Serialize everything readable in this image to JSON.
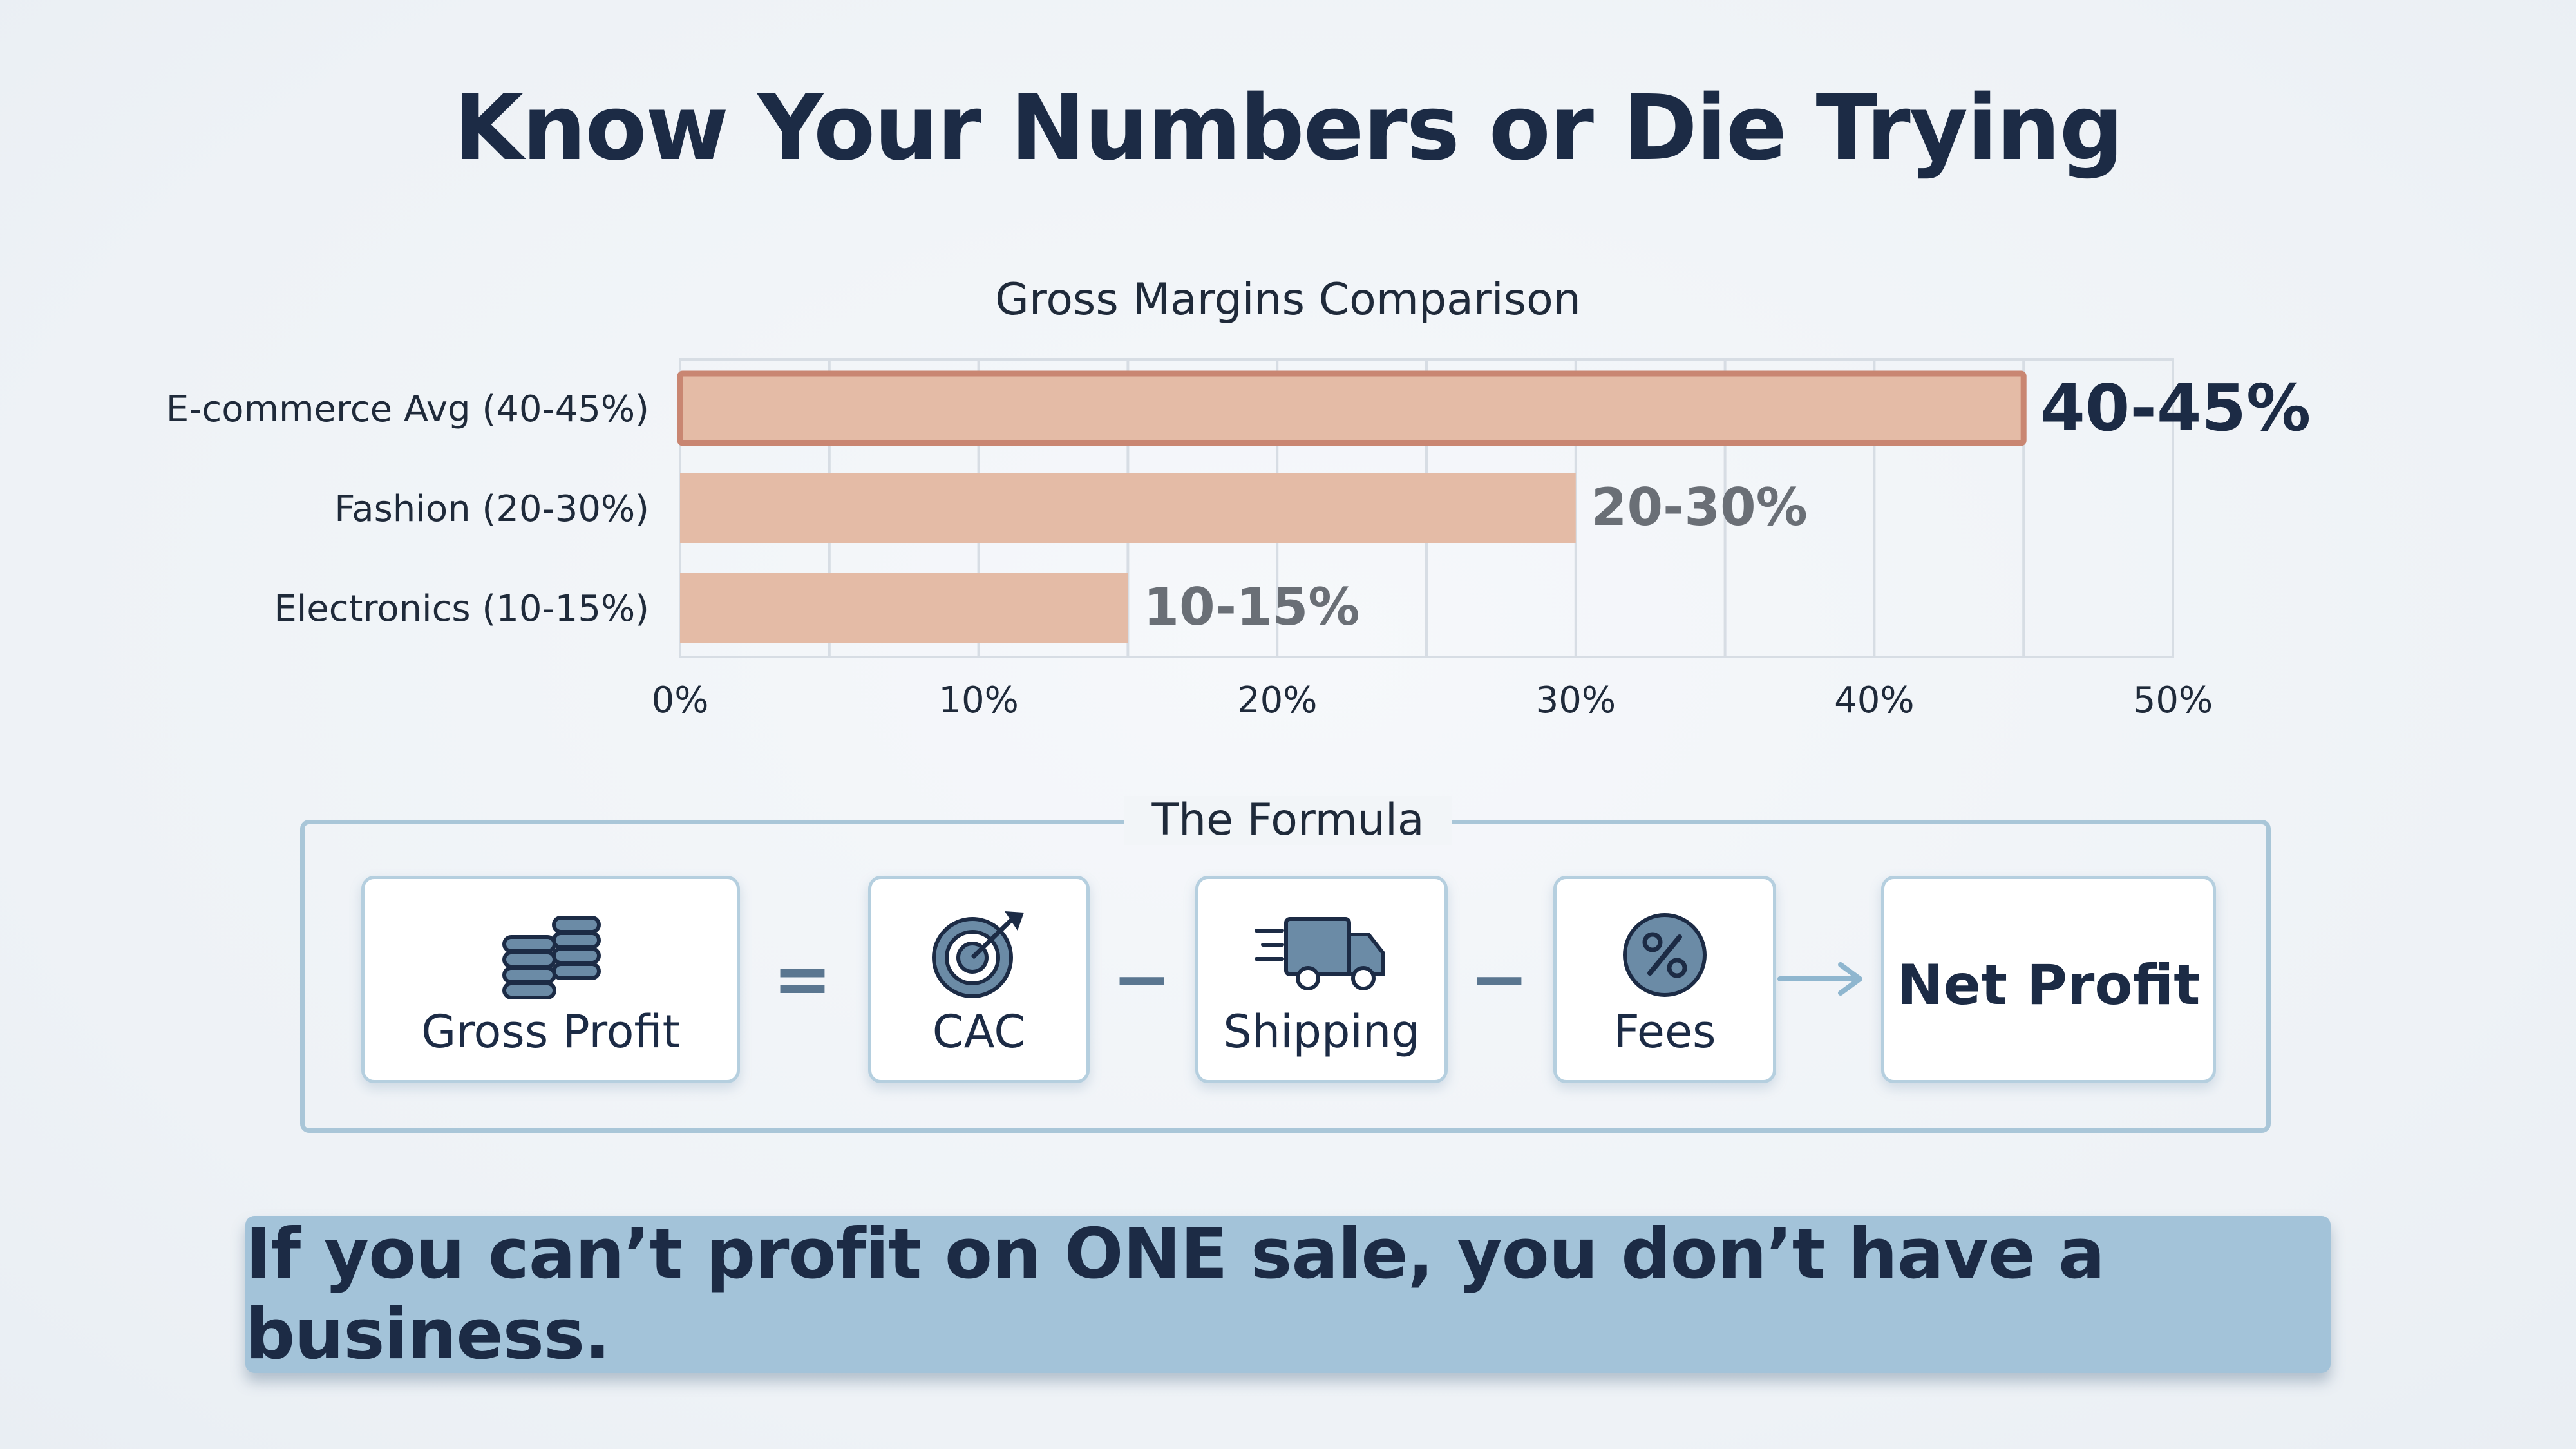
{
  "title": "Know Your Numbers or Die Trying",
  "chart_data": {
    "type": "bar",
    "orientation": "horizontal",
    "title": "Gross Margins Comparison",
    "categories": [
      "E-commerce Avg (40-45%)",
      "Fashion (20-30%)",
      "Electronics (10-15%)"
    ],
    "values": [
      45,
      30,
      15
    ],
    "data_labels": [
      "40-45%",
      "20-30%",
      "10-15%"
    ],
    "xlim": [
      0,
      50
    ],
    "xticks": [
      0,
      10,
      20,
      30,
      40,
      50
    ],
    "xtick_labels": [
      "0%",
      "10%",
      "20%",
      "30%",
      "40%",
      "50%"
    ],
    "grid": true,
    "highlighted_category": "E-commerce Avg (40-45%)",
    "colors": {
      "bar": "#e4bba6",
      "highlight_border": "#c98672",
      "grid": "#d7dde4"
    }
  },
  "formula": {
    "label": "The Formula",
    "terms": [
      {
        "label": "Gross Profit",
        "icon": "coin-stack-icon"
      },
      {
        "operator": "="
      },
      {
        "label": "CAC",
        "icon": "target-icon"
      },
      {
        "operator": "−"
      },
      {
        "label": "Shipping",
        "icon": "delivery-truck-icon"
      },
      {
        "operator": "−"
      },
      {
        "label": "Fees",
        "icon": "percent-icon"
      },
      {
        "operator": "→"
      },
      {
        "label": "Net Profit"
      }
    ]
  },
  "banner": {
    "text": "If you can’t profit on ONE sale, you don’t have a business."
  },
  "colors": {
    "text": "#1c2b45",
    "banner_bg": "#a3c3d9",
    "card_border": "#b5cfdf",
    "icon_fill": "#6b8ba6"
  }
}
